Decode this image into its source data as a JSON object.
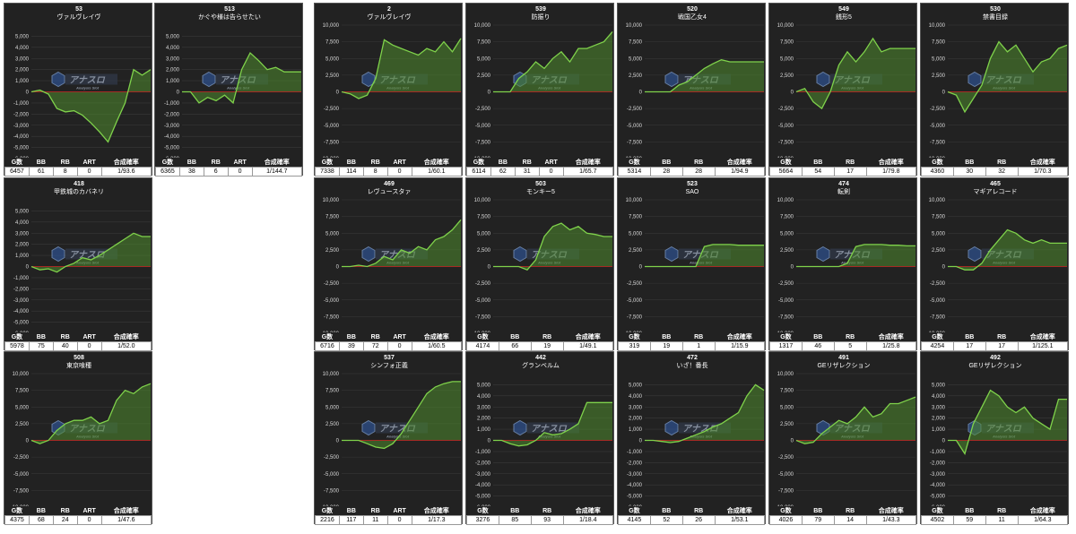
{
  "colors": {
    "line": "#7fd24b",
    "fill": "#4f8a2e",
    "zero": "#cc2222",
    "grid": "#3a3a3a",
    "panel": "#222222"
  },
  "watermark": {
    "main": "アナスロ",
    "sub": "Analysis Slot",
    "icon": "logo-icon"
  },
  "chart_data": [
    {
      "type": "line",
      "number": "53",
      "title": "ヴァルヴレイヴ",
      "ylim": [
        -6000,
        6000
      ],
      "yticks": [
        "5,000",
        "4,000",
        "3,000",
        "2,000",
        "1,000",
        "0",
        "-1,000",
        "-2,000",
        "-3,000",
        "-4,000",
        "-5,000",
        "-6,000"
      ],
      "y": [
        0,
        150,
        -200,
        -1500,
        -1800,
        -1700,
        -2100,
        -2800,
        -3600,
        -4500,
        -2700,
        -1000,
        2000,
        1500,
        2000
      ],
      "table": {
        "headers": [
          "G数",
          "BB",
          "RB",
          "ART",
          "合成確率"
        ],
        "values": [
          "6457",
          "61",
          "8",
          "0",
          "1/93.6"
        ]
      }
    },
    {
      "type": "line",
      "number": "513",
      "title": "かぐや様は告らせたい",
      "ylim": [
        -6000,
        6000
      ],
      "yticks": [
        "5,000",
        "4,000",
        "3,000",
        "2,000",
        "1,000",
        "0",
        "-1,000",
        "-2,000",
        "-3,000",
        "-4,000",
        "-5,000",
        "-6,000"
      ],
      "y": [
        0,
        0,
        -1000,
        -500,
        -800,
        -300,
        -1000,
        2000,
        3500,
        2800,
        2000,
        2200,
        1800,
        1800,
        1800
      ],
      "table": {
        "headers": [
          "G数",
          "BB",
          "RB",
          "ART",
          "合成確率"
        ],
        "values": [
          "6365",
          "38",
          "6",
          "0",
          "1/144.7"
        ]
      }
    },
    {
      "type": "line",
      "number": "2",
      "title": "ヴァルヴレイヴ",
      "ylim": [
        -10000,
        10000
      ],
      "yticks": [
        "10,000",
        "7,500",
        "5,000",
        "2,500",
        "0",
        "-2,500",
        "-5,000",
        "-7,500",
        "-10,000"
      ],
      "y": [
        0,
        -300,
        -1000,
        -500,
        2000,
        7800,
        7000,
        6500,
        6000,
        5500,
        6500,
        6000,
        7500,
        6000,
        8000
      ],
      "table": {
        "headers": [
          "G数",
          "BB",
          "RB",
          "ART",
          "合成確率"
        ],
        "values": [
          "7338",
          "114",
          "8",
          "0",
          "1/60.1"
        ]
      }
    },
    {
      "type": "line",
      "number": "539",
      "title": "防振り",
      "ylim": [
        -10000,
        10000
      ],
      "yticks": [
        "10,000",
        "7,500",
        "5,000",
        "2,500",
        "0",
        "-2,500",
        "-5,000",
        "-7,500",
        "-10,000"
      ],
      "y": [
        0,
        0,
        0,
        2000,
        3000,
        4500,
        3500,
        5000,
        6000,
        4500,
        6500,
        6500,
        7000,
        7500,
        9000
      ],
      "table": {
        "headers": [
          "G数",
          "BB",
          "RB",
          "ART",
          "合成確率"
        ],
        "values": [
          "6114",
          "62",
          "31",
          "0",
          "1/65.7"
        ]
      }
    },
    {
      "type": "line",
      "number": "520",
      "title": "戦国乙女4",
      "ylim": [
        -10000,
        10000
      ],
      "yticks": [
        "10,000",
        "7,500",
        "5,000",
        "2,500",
        "0",
        "-2,500",
        "-5,000",
        "-7,500",
        "-10,000"
      ],
      "y": [
        0,
        0,
        0,
        0,
        1000,
        1500,
        2500,
        3500,
        4200,
        4800,
        4500,
        4500,
        4500,
        4500,
        4500
      ],
      "table": {
        "headers": [
          "G数",
          "BB",
          "RB",
          "合成確率"
        ],
        "values": [
          "5314",
          "28",
          "28",
          "1/94.9"
        ]
      }
    },
    {
      "type": "line",
      "number": "549",
      "title": "銭形5",
      "ylim": [
        -10000,
        10000
      ],
      "yticks": [
        "10,000",
        "7,500",
        "5,000",
        "2,500",
        "0",
        "-2,500",
        "-5,000",
        "-7,500",
        "-10,000"
      ],
      "y": [
        0,
        500,
        -1500,
        -2500,
        0,
        4000,
        6000,
        4500,
        6000,
        8000,
        6000,
        6500,
        6500,
        6500,
        6500
      ],
      "table": {
        "headers": [
          "G数",
          "BB",
          "RB",
          "合成確率"
        ],
        "values": [
          "5664",
          "54",
          "17",
          "1/79.8"
        ]
      }
    },
    {
      "type": "line",
      "number": "530",
      "title": "禁書目録",
      "ylim": [
        -10000,
        10000
      ],
      "yticks": [
        "10,000",
        "7,500",
        "5,000",
        "2,500",
        "0",
        "-2,500",
        "-5,000",
        "-7,500",
        "-10,000"
      ],
      "y": [
        0,
        -500,
        -3000,
        -1000,
        1000,
        5000,
        7500,
        6000,
        7000,
        5000,
        3000,
        4500,
        5000,
        6500,
        7000
      ],
      "table": {
        "headers": [
          "G数",
          "BB",
          "RB",
          "合成確率"
        ],
        "values": [
          "4360",
          "30",
          "32",
          "1/70.3"
        ]
      }
    },
    {
      "type": "line",
      "number": "418",
      "title": "甲鉄城のカバネリ",
      "ylim": [
        -6000,
        6000
      ],
      "yticks": [
        "5,000",
        "4,000",
        "3,000",
        "2,000",
        "1,000",
        "0",
        "-1,000",
        "-2,000",
        "-3,000",
        "-4,000",
        "-5,000",
        "-6,000"
      ],
      "y": [
        0,
        -300,
        -200,
        -500,
        0,
        300,
        800,
        600,
        1000,
        1500,
        2000,
        2500,
        3000,
        2700,
        2700
      ],
      "table": {
        "headers": [
          "G数",
          "BB",
          "RB",
          "ART",
          "合成確率"
        ],
        "values": [
          "5978",
          "75",
          "40",
          "0",
          "1/52.0"
        ]
      }
    },
    {
      "type": "line",
      "number": "469",
      "title": "レヴュースタァ",
      "ylim": [
        -10000,
        10000
      ],
      "yticks": [
        "10,000",
        "7,500",
        "5,000",
        "2,500",
        "0",
        "-2,500",
        "-5,000",
        "-7,500",
        "-10,000"
      ],
      "y": [
        0,
        0,
        200,
        0,
        500,
        1500,
        1000,
        2500,
        2000,
        3000,
        2500,
        4000,
        4500,
        5500,
        7000
      ],
      "table": {
        "headers": [
          "G数",
          "BB",
          "RB",
          "ART",
          "合成確率"
        ],
        "values": [
          "6716",
          "39",
          "72",
          "0",
          "1/60.5"
        ]
      }
    },
    {
      "type": "line",
      "number": "503",
      "title": "モンキー5",
      "ylim": [
        -10000,
        10000
      ],
      "yticks": [
        "10,000",
        "7,500",
        "5,000",
        "2,500",
        "0",
        "-2,500",
        "-5,000",
        "-7,500",
        "-10,000"
      ],
      "y": [
        0,
        0,
        0,
        0,
        -500,
        1000,
        4500,
        6000,
        6500,
        5500,
        6000,
        5000,
        4800,
        4500,
        4500
      ],
      "table": {
        "headers": [
          "G数",
          "BB",
          "RB",
          "合成確率"
        ],
        "values": [
          "4174",
          "66",
          "19",
          "1/49.1"
        ]
      }
    },
    {
      "type": "line",
      "number": "523",
      "title": "SAO",
      "ylim": [
        -10000,
        10000
      ],
      "yticks": [
        "10,000",
        "7,500",
        "5,000",
        "2,500",
        "0",
        "-2,500",
        "-5,000",
        "-7,500",
        "-10,000"
      ],
      "y": [
        0,
        0,
        0,
        0,
        0,
        0,
        0,
        3000,
        3300,
        3300,
        3300,
        3200,
        3200,
        3200,
        3200
      ],
      "table": {
        "headers": [
          "G数",
          "BB",
          "RB",
          "合成確率"
        ],
        "values": [
          "319",
          "19",
          "1",
          "1/15.9"
        ]
      }
    },
    {
      "type": "line",
      "number": "474",
      "title": "転剣",
      "ylim": [
        -10000,
        10000
      ],
      "yticks": [
        "10,000",
        "7,500",
        "5,000",
        "2,500",
        "0",
        "-2,500",
        "-5,000",
        "-7,500",
        "-10,000"
      ],
      "y": [
        0,
        0,
        0,
        0,
        0,
        0,
        500,
        3000,
        3300,
        3300,
        3300,
        3200,
        3200,
        3100,
        3100
      ],
      "table": {
        "headers": [
          "G数",
          "BB",
          "RB",
          "合成確率"
        ],
        "values": [
          "1317",
          "46",
          "5",
          "1/25.8"
        ]
      }
    },
    {
      "type": "line",
      "number": "465",
      "title": "マギアレコード",
      "ylim": [
        -10000,
        10000
      ],
      "yticks": [
        "10,000",
        "7,500",
        "5,000",
        "2,500",
        "0",
        "-2,500",
        "-5,000",
        "-7,500",
        "-10,000"
      ],
      "y": [
        0,
        0,
        -500,
        -500,
        500,
        2500,
        4000,
        5500,
        5000,
        4000,
        3500,
        4000,
        3500,
        3500,
        3500
      ],
      "table": {
        "headers": [
          "G数",
          "BB",
          "RB",
          "合成確率"
        ],
        "values": [
          "4254",
          "17",
          "17",
          "1/125.1"
        ]
      }
    },
    {
      "type": "line",
      "number": "508",
      "title": "東京喰種",
      "ylim": [
        -10000,
        10000
      ],
      "yticks": [
        "10,000",
        "7,500",
        "5,000",
        "2,500",
        "0",
        "-2,500",
        "-5,000",
        "-7,500",
        "-10,000"
      ],
      "y": [
        0,
        -500,
        0,
        1500,
        2500,
        3000,
        3000,
        3500,
        2500,
        3000,
        6000,
        7500,
        7000,
        8000,
        8500
      ],
      "table": {
        "headers": [
          "G数",
          "BB",
          "RB",
          "ART",
          "合成確率"
        ],
        "values": [
          "4375",
          "68",
          "24",
          "0",
          "1/47.6"
        ]
      }
    },
    {
      "type": "line",
      "number": "537",
      "title": "シンフォ正義",
      "ylim": [
        -10000,
        10000
      ],
      "yticks": [
        "10,000",
        "7,500",
        "5,000",
        "2,500",
        "0",
        "-2,500",
        "-5,000",
        "-7,500",
        "-10,000"
      ],
      "y": [
        0,
        0,
        0,
        -500,
        -1000,
        -1200,
        -500,
        1000,
        3000,
        5000,
        7000,
        8000,
        8500,
        8800,
        8800
      ],
      "table": {
        "headers": [
          "G数",
          "BB",
          "RB",
          "ART",
          "合成確率"
        ],
        "values": [
          "2216",
          "117",
          "11",
          "0",
          "1/17.3"
        ]
      }
    },
    {
      "type": "line",
      "number": "442",
      "title": "グランベルム",
      "ylim": [
        -6000,
        6000
      ],
      "yticks": [
        "5,000",
        "4,000",
        "3,000",
        "2,000",
        "1,000",
        "0",
        "-1,000",
        "-2,000",
        "-3,000",
        "-4,000",
        "-5,000",
        "-6,000"
      ],
      "y": [
        0,
        0,
        -300,
        -500,
        -400,
        0,
        700,
        500,
        600,
        1000,
        1500,
        3400,
        3400,
        3400,
        3400
      ],
      "table": {
        "headers": [
          "G数",
          "BB",
          "RB",
          "合成確率"
        ],
        "values": [
          "3276",
          "85",
          "93",
          "1/18.4"
        ]
      }
    },
    {
      "type": "line",
      "number": "472",
      "title": "いざ！番長",
      "ylim": [
        -6000,
        6000
      ],
      "yticks": [
        "5,000",
        "4,000",
        "3,000",
        "2,000",
        "1,000",
        "0",
        "-1,000",
        "-2,000",
        "-3,000",
        "-4,000",
        "-5,000",
        "-6,000"
      ],
      "y": [
        0,
        0,
        -100,
        -200,
        -100,
        200,
        500,
        800,
        1200,
        1500,
        2000,
        2500,
        4000,
        5000,
        4500
      ],
      "table": {
        "headers": [
          "G数",
          "BB",
          "RB",
          "合成確率"
        ],
        "values": [
          "4145",
          "52",
          "26",
          "1/53.1"
        ]
      }
    },
    {
      "type": "line",
      "number": "491",
      "title": "GEリザレクション",
      "ylim": [
        -10000,
        10000
      ],
      "yticks": [
        "10,000",
        "7,500",
        "5,000",
        "2,500",
        "0",
        "-2,500",
        "-5,000",
        "-7,500",
        "-10,000"
      ],
      "y": [
        0,
        -500,
        -300,
        1000,
        2000,
        3000,
        2500,
        3500,
        5000,
        3500,
        4000,
        5500,
        5500,
        6000,
        6500
      ],
      "table": {
        "headers": [
          "G数",
          "BB",
          "RB",
          "合成確率"
        ],
        "values": [
          "4026",
          "79",
          "14",
          "1/43.3"
        ]
      }
    },
    {
      "type": "line",
      "number": "492",
      "title": "GEリザレクション",
      "ylim": [
        -6000,
        6000
      ],
      "yticks": [
        "5,000",
        "4,000",
        "3,000",
        "2,000",
        "1,000",
        "0",
        "-1,000",
        "-2,000",
        "-3,000",
        "-4,000",
        "-5,000",
        "-6,000"
      ],
      "y": [
        0,
        0,
        -1200,
        1500,
        3000,
        4500,
        4000,
        3000,
        2500,
        3000,
        2000,
        1500,
        1000,
        3700,
        3700
      ],
      "table": {
        "headers": [
          "G数",
          "BB",
          "RB",
          "合成確率"
        ],
        "values": [
          "4502",
          "59",
          "11",
          "1/64.3"
        ]
      }
    }
  ]
}
